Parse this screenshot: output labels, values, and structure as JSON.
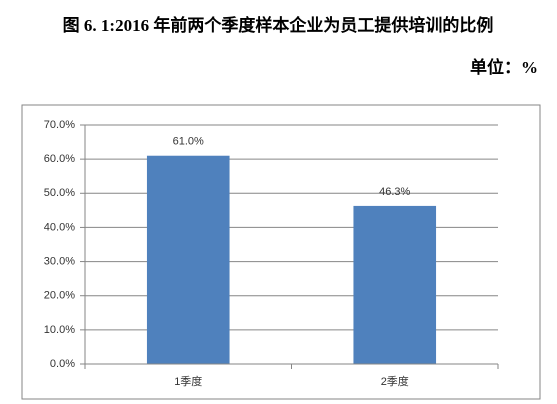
{
  "chart_data": {
    "type": "bar",
    "title": "图 6. 1:2016 年前两个季度样本企业为员工提供培训的比例",
    "subtitle": "单位：%",
    "categories": [
      "1季度",
      "2季度"
    ],
    "values": [
      61.0,
      46.3
    ],
    "value_labels": [
      "61.0%",
      "46.3%"
    ],
    "color": "#4f81bd",
    "ylim": [
      0,
      70
    ],
    "yticks": [
      {
        "value": 0,
        "label": "0.0%"
      },
      {
        "value": 10,
        "label": "10.0%"
      },
      {
        "value": 20,
        "label": "20.0%"
      },
      {
        "value": 30,
        "label": "30.0%"
      },
      {
        "value": 40,
        "label": "40.0%"
      },
      {
        "value": 50,
        "label": "50.0%"
      },
      {
        "value": 60,
        "label": "60.0%"
      },
      {
        "value": 70,
        "label": "70.0%"
      }
    ],
    "grid": true
  }
}
